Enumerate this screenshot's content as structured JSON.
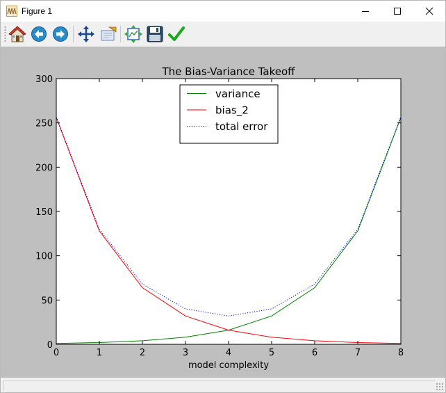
{
  "window": {
    "title": "Figure 1"
  },
  "title_bar": {
    "minimize_icon": "minimize-icon",
    "maximize_icon": "maximize-icon",
    "close_icon": "close-icon"
  },
  "toolbar": {
    "buttons": [
      {
        "icon": "home-icon"
      },
      {
        "icon": "back-arrow-icon"
      },
      {
        "icon": "forward-arrow-icon"
      },
      {
        "icon": "pan-icon"
      },
      {
        "icon": "zoom-icon"
      },
      {
        "icon": "subplots-icon"
      },
      {
        "icon": "save-icon"
      },
      {
        "icon": "checkmark-icon"
      }
    ]
  },
  "colors": {
    "variance": "#008000",
    "bias_2": "#ff0000",
    "total_error": "#0000ff",
    "figure_bg": "#bfbfbf",
    "axes_bg": "#ffffff"
  },
  "chart_data": {
    "type": "line",
    "title": "The Bias-Variance Takeoff",
    "xlabel": "model complexity",
    "ylabel": "",
    "xlim": [
      0,
      8
    ],
    "ylim": [
      0,
      300
    ],
    "x_ticks": [
      "0",
      "1",
      "2",
      "3",
      "4",
      "5",
      "6",
      "7",
      "8"
    ],
    "y_ticks": [
      "0",
      "50",
      "100",
      "150",
      "200",
      "250",
      "300"
    ],
    "x": [
      0,
      1,
      2,
      3,
      4,
      5,
      6,
      7,
      8
    ],
    "series": [
      {
        "name": "variance",
        "style": "solid",
        "color": "#008000",
        "values": [
          1,
          2,
          4,
          8,
          16,
          32,
          64,
          128,
          256
        ]
      },
      {
        "name": "bias_2",
        "style": "solid",
        "color": "#ff0000",
        "values": [
          256,
          128,
          64,
          32,
          16,
          8,
          4,
          2,
          1
        ]
      },
      {
        "name": "total error",
        "style": "dotted",
        "color": "#0000ff",
        "values": [
          257,
          130,
          68,
          40,
          32,
          40,
          68,
          130,
          257
        ]
      }
    ],
    "grid": false,
    "legend_position": "upper center"
  }
}
